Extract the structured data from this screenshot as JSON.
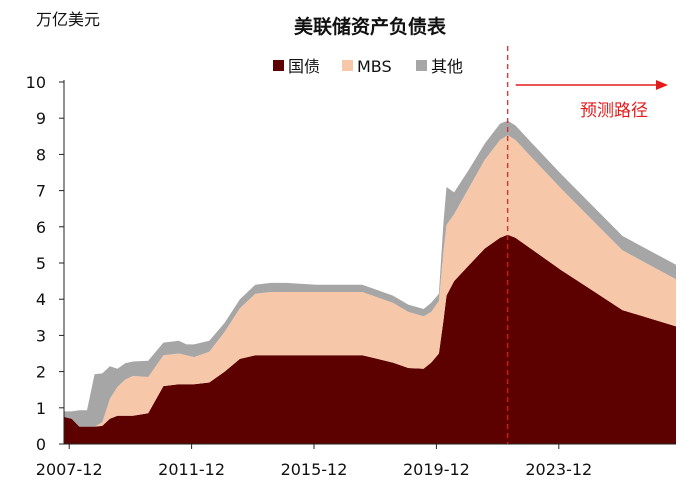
{
  "chart_data": {
    "type": "area",
    "title": "美联储资产负债表",
    "unit_label": "万亿美元",
    "projection_label": "预测路径",
    "ylim": [
      0,
      10
    ],
    "yticks": [
      0,
      1,
      2,
      3,
      4,
      5,
      6,
      7,
      8,
      9,
      10
    ],
    "xlim": [
      2007.75,
      2027.75
    ],
    "xticks": [
      {
        "label": "2007-12",
        "x": 2007.92
      },
      {
        "label": "2011-12",
        "x": 2011.92
      },
      {
        "label": "2015-12",
        "x": 2015.92
      },
      {
        "label": "2019-12",
        "x": 2019.92
      },
      {
        "label": "2023-12",
        "x": 2023.92
      }
    ],
    "projection_start": 2022.25,
    "grid": false,
    "legend_position": "top-center",
    "stacked": true,
    "x": [
      2007.75,
      2008.0,
      2008.25,
      2008.5,
      2008.75,
      2009.0,
      2009.25,
      2009.5,
      2009.75,
      2010.0,
      2010.5,
      2011.0,
      2011.5,
      2011.75,
      2012.0,
      2012.5,
      2013.0,
      2013.5,
      2014.0,
      2014.5,
      2015.0,
      2016.0,
      2017.0,
      2017.5,
      2018.0,
      2018.5,
      2019.0,
      2019.5,
      2019.75,
      2020.0,
      2020.15,
      2020.25,
      2020.5,
      2021.0,
      2021.5,
      2022.0,
      2022.25,
      2022.5,
      2023.0,
      2024.0,
      2025.0,
      2026.0,
      2027.75
    ],
    "series": [
      {
        "name": "国债",
        "color": "#5c0000",
        "values": [
          0.75,
          0.7,
          0.48,
          0.48,
          0.48,
          0.5,
          0.7,
          0.78,
          0.78,
          0.78,
          0.85,
          1.6,
          1.65,
          1.65,
          1.65,
          1.7,
          2.0,
          2.35,
          2.45,
          2.45,
          2.45,
          2.45,
          2.45,
          2.45,
          2.35,
          2.25,
          2.1,
          2.08,
          2.25,
          2.5,
          3.4,
          4.1,
          4.5,
          4.95,
          5.4,
          5.7,
          5.78,
          5.7,
          5.4,
          4.8,
          4.25,
          3.7,
          3.25
        ]
      },
      {
        "name": "MBS",
        "color": "#f7c7a9",
        "values": [
          0.0,
          0.0,
          0.0,
          0.0,
          0.0,
          0.1,
          0.55,
          0.8,
          1.0,
          1.1,
          1.0,
          0.85,
          0.85,
          0.8,
          0.75,
          0.85,
          1.1,
          1.4,
          1.7,
          1.75,
          1.75,
          1.75,
          1.75,
          1.75,
          1.7,
          1.65,
          1.55,
          1.45,
          1.4,
          1.45,
          1.9,
          1.95,
          1.85,
          2.15,
          2.45,
          2.7,
          2.75,
          2.7,
          2.55,
          2.25,
          1.95,
          1.65,
          1.3
        ]
      },
      {
        "name": "其他",
        "color": "#a6a6a6",
        "values": [
          0.15,
          0.2,
          0.45,
          0.45,
          1.45,
          1.35,
          0.9,
          0.5,
          0.45,
          0.4,
          0.45,
          0.35,
          0.35,
          0.3,
          0.35,
          0.3,
          0.25,
          0.25,
          0.25,
          0.25,
          0.25,
          0.2,
          0.2,
          0.2,
          0.2,
          0.2,
          0.2,
          0.2,
          0.25,
          0.2,
          0.8,
          1.05,
          0.6,
          0.5,
          0.45,
          0.45,
          0.4,
          0.4,
          0.4,
          0.4,
          0.4,
          0.4,
          0.4
        ]
      }
    ]
  }
}
